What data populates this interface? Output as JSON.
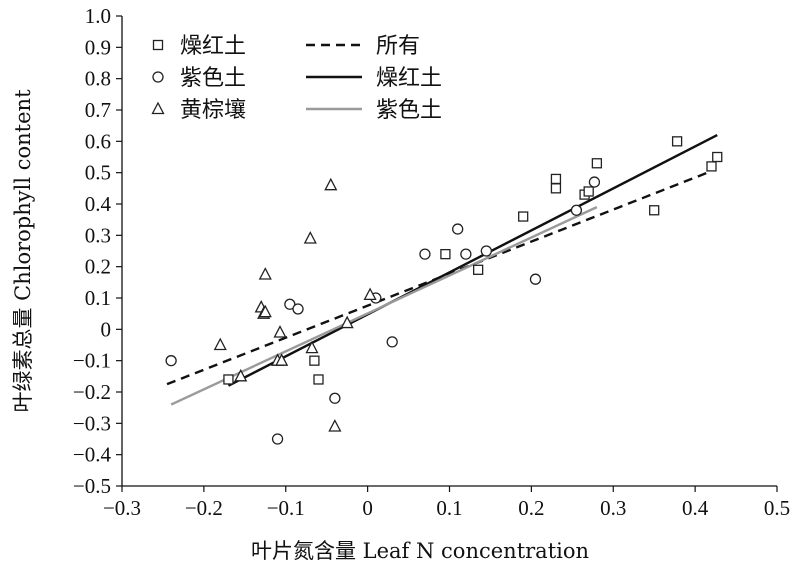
{
  "chart_data": {
    "type": "scatter",
    "xlabel": "叶片氮含量 Leaf N concentration",
    "ylabel": "叶绿素总量 Chlorophyll content",
    "xlim": [
      -0.3,
      0.5
    ],
    "ylim": [
      -0.5,
      1.0
    ],
    "x_ticks": [
      "−0.3",
      "−0.2",
      "−0.1",
      "0",
      "0.1",
      "0.2",
      "0.3",
      "0.4",
      "0.5"
    ],
    "y_ticks": [
      "−0.5",
      "−0.4",
      "−0.3",
      "−0.2",
      "−0.1",
      "0",
      "0.1",
      "0.2",
      "0.3",
      "0.4",
      "0.5",
      "0.6",
      "0.7",
      "0.8",
      "0.9",
      "1.0"
    ],
    "grid": false,
    "legend_position": "top-left",
    "series": [
      {
        "name": "燥红土",
        "marker": "square",
        "points": [
          [
            -0.17,
            -0.16
          ],
          [
            -0.065,
            -0.1
          ],
          [
            -0.06,
            -0.16
          ],
          [
            0.095,
            0.24
          ],
          [
            0.135,
            0.19
          ],
          [
            0.19,
            0.36
          ],
          [
            0.23,
            0.48
          ],
          [
            0.23,
            0.45
          ],
          [
            0.265,
            0.43
          ],
          [
            0.27,
            0.44
          ],
          [
            0.28,
            0.53
          ],
          [
            0.35,
            0.38
          ],
          [
            0.378,
            0.6
          ],
          [
            0.42,
            0.52
          ],
          [
            0.427,
            0.55
          ]
        ]
      },
      {
        "name": "紫色土",
        "marker": "circle",
        "points": [
          [
            -0.24,
            -0.1
          ],
          [
            -0.11,
            -0.35
          ],
          [
            -0.095,
            0.08
          ],
          [
            -0.085,
            0.065
          ],
          [
            -0.04,
            -0.22
          ],
          [
            0.01,
            0.1
          ],
          [
            0.03,
            -0.04
          ],
          [
            0.07,
            0.24
          ],
          [
            0.11,
            0.32
          ],
          [
            0.12,
            0.24
          ],
          [
            0.145,
            0.25
          ],
          [
            0.205,
            0.16
          ],
          [
            0.255,
            0.38
          ],
          [
            0.277,
            0.47
          ]
        ]
      },
      {
        "name": "黄棕壤",
        "marker": "triangle",
        "points": [
          [
            -0.18,
            -0.05
          ],
          [
            -0.155,
            -0.15
          ],
          [
            -0.13,
            0.07
          ],
          [
            -0.127,
            0.05
          ],
          [
            -0.125,
            0.055
          ],
          [
            -0.125,
            0.175
          ],
          [
            -0.11,
            -0.1
          ],
          [
            -0.107,
            -0.01
          ],
          [
            -0.105,
            -0.1
          ],
          [
            -0.07,
            0.29
          ],
          [
            -0.068,
            -0.06
          ],
          [
            -0.045,
            0.46
          ],
          [
            -0.04,
            -0.31
          ],
          [
            -0.025,
            0.02
          ],
          [
            0.003,
            0.11
          ]
        ]
      }
    ],
    "lines": [
      {
        "name": "所有",
        "style": "dashed",
        "color": "#111111",
        "x": [
          -0.245,
          0.42
        ],
        "y": [
          -0.175,
          0.505
        ]
      },
      {
        "name": "燥红土",
        "style": "solid",
        "color": "#111111",
        "x": [
          -0.17,
          0.427
        ],
        "y": [
          -0.18,
          0.62
        ]
      },
      {
        "name": "紫色土",
        "style": "solid",
        "color": "#9a9a9a",
        "x": [
          -0.24,
          0.28
        ],
        "y": [
          -0.24,
          0.39
        ]
      }
    ]
  }
}
